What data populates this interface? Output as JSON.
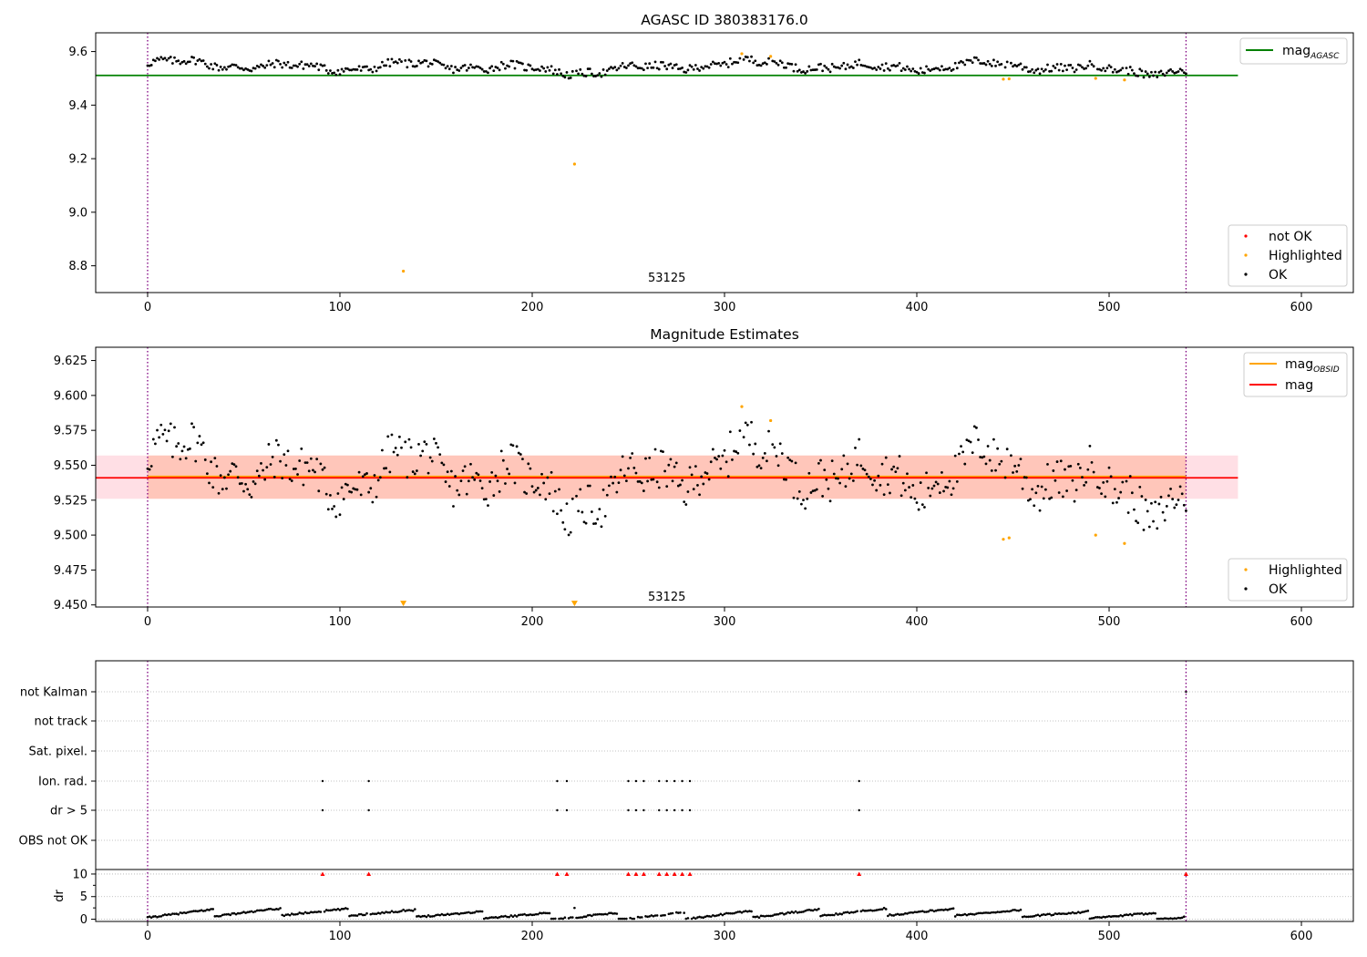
{
  "chart_data": [
    {
      "type": "scatter",
      "title": "AGASC ID 380383176.0",
      "xlim": [
        -27,
        627
      ],
      "ylim": [
        8.7,
        9.67
      ],
      "xticks": [
        0,
        100,
        200,
        300,
        400,
        500,
        600
      ],
      "yticks": [
        8.8,
        9.0,
        9.2,
        9.4,
        9.6
      ],
      "ytick_labels": [
        "8.8",
        "9.0",
        "9.2",
        "9.4",
        "9.6"
      ],
      "vlines": [
        0,
        540
      ],
      "vline_color": "#7f007f",
      "annotation": {
        "text": "53125",
        "x": 270,
        "y": 8.74
      },
      "reference_line": {
        "name": "mag",
        "sub": "AGASC",
        "y": 9.511,
        "x": [
          -27,
          567
        ],
        "color": "#008000"
      },
      "series": [
        {
          "name": "not OK",
          "color": "#ff0000",
          "points": []
        },
        {
          "name": "Highlighted",
          "color": "#ffa500",
          "points": [
            [
              133,
              8.78
            ],
            [
              222,
              9.18
            ],
            [
              309,
              9.592
            ],
            [
              324,
              9.582
            ],
            [
              445,
              9.497
            ],
            [
              448,
              9.498
            ],
            [
              493,
              9.5
            ],
            [
              508,
              9.494
            ]
          ]
        },
        {
          "name": "OK",
          "color": "#000000",
          "summary": "540 points, x 0-540, values 9.50-9.58",
          "wave_amp": [
            0.022,
            0.0016,
            0.38
          ]
        }
      ],
      "legends": [
        {
          "position": "upper right",
          "entries": [
            "mag_AGASC"
          ]
        },
        {
          "position": "lower right",
          "entries": [
            "not OK",
            "Highlighted",
            "OK"
          ]
        }
      ]
    },
    {
      "type": "scatter",
      "title": "Magnitude Estimates",
      "xlim": [
        -27,
        627
      ],
      "ylim": [
        9.4485,
        9.6345
      ],
      "xticks": [
        0,
        100,
        200,
        300,
        400,
        500,
        600
      ],
      "yticks": [
        9.45,
        9.475,
        9.5,
        9.525,
        9.55,
        9.575,
        9.6,
        9.625
      ],
      "ytick_labels": [
        "9.450",
        "9.475",
        "9.500",
        "9.525",
        "9.550",
        "9.575",
        "9.600",
        "9.625"
      ],
      "vlines": [
        0,
        540
      ],
      "annotation": {
        "text": "53125",
        "x": 270,
        "y": 9.453
      },
      "lines": [
        {
          "name": "mag",
          "sub": "OBSID",
          "y": 9.542,
          "x": [
            0,
            540
          ],
          "color": "#ffa500"
        },
        {
          "name": "mag",
          "y": 9.541,
          "x": [
            -27,
            567
          ],
          "color": "#ff0000"
        }
      ],
      "bands": [
        {
          "y": [
            9.526,
            9.557
          ],
          "x": [
            -27,
            567
          ],
          "color": "#ffc0cb",
          "opacity": 0.5
        },
        {
          "y": [
            9.526,
            9.557
          ],
          "x": [
            0,
            540
          ],
          "color": "#ffa07a",
          "opacity": 0.4
        }
      ],
      "series": [
        {
          "name": "Highlighted",
          "color": "#ffa500",
          "points": [
            [
              309,
              9.592
            ],
            [
              324,
              9.582
            ],
            [
              445,
              9.497
            ],
            [
              448,
              9.498
            ],
            [
              493,
              9.5
            ],
            [
              508,
              9.494
            ]
          ],
          "clipped_markers": [
            [
              133,
              9.451
            ],
            [
              222,
              9.451
            ]
          ]
        },
        {
          "name": "OK",
          "color": "#000000",
          "summary": "540 points, x 0-540, values 9.50-9.58"
        }
      ],
      "legends": [
        {
          "position": "upper right",
          "entries": [
            "mag_OBSID",
            "mag"
          ]
        },
        {
          "position": "lower right",
          "entries": [
            "Highlighted",
            "OK"
          ]
        }
      ]
    },
    {
      "type": "scatter",
      "title": "",
      "xlim": [
        -27,
        627
      ],
      "xticks": [
        0,
        100,
        200,
        300,
        400,
        500,
        600
      ],
      "vlines": [
        0,
        540
      ],
      "flag_rows": [
        "not Kalman",
        "not track",
        "Sat. pixel.",
        "Ion. rad.",
        "dr > 5",
        "OBS not OK"
      ],
      "flag_points": {
        "Ion. rad.": [
          91,
          115,
          213,
          218,
          250,
          254,
          258,
          266,
          270,
          274,
          278,
          282,
          370
        ],
        "dr > 5": [
          91,
          115,
          213,
          218,
          250,
          254,
          258,
          266,
          270,
          274,
          278,
          282,
          370
        ],
        "not Kalman": [
          540
        ]
      },
      "dr": {
        "ylabel": "dr",
        "ylim": [
          -0.5,
          11
        ],
        "yticks": [
          0,
          5,
          10
        ],
        "clipped_x": [
          91,
          115,
          213,
          218,
          250,
          254,
          258,
          266,
          270,
          274,
          278,
          282,
          370,
          540
        ],
        "clip_value": 10,
        "outliers": [
          [
            133,
            2.1
          ],
          [
            222,
            2.5
          ]
        ],
        "summary": "dr 0.2-2.3 for x 0-540"
      }
    }
  ]
}
